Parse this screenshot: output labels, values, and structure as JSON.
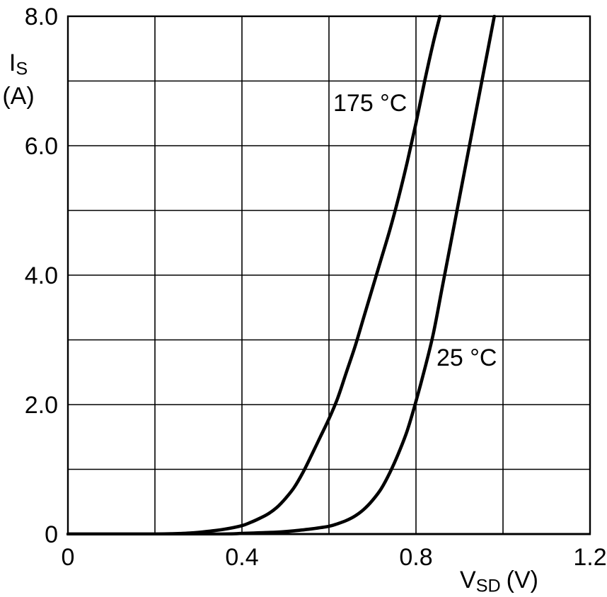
{
  "chart_data": {
    "type": "line",
    "title": "",
    "xlabel": {
      "symbol": "V",
      "subscript": "SD",
      "unit": "(V)"
    },
    "ylabel": {
      "symbol": "I",
      "subscript": "S",
      "unit": "(A)"
    },
    "xlim": [
      0,
      1.2
    ],
    "ylim": [
      0,
      8
    ],
    "xticks": [
      {
        "value": 0,
        "label": "0"
      },
      {
        "value": 0.4,
        "label": "0.4"
      },
      {
        "value": 0.8,
        "label": "0.8"
      },
      {
        "value": 1.2,
        "label": "1.2"
      }
    ],
    "yticks": [
      {
        "value": 0,
        "label": "0"
      },
      {
        "value": 2,
        "label": "2.0"
      },
      {
        "value": 4,
        "label": "4.0"
      },
      {
        "value": 6,
        "label": "6.0"
      },
      {
        "value": 8,
        "label": "8.0"
      }
    ],
    "grid": {
      "visible": true,
      "x_step": 0.2,
      "y_step": 1
    },
    "legend_position": "inline-annotations",
    "background_color": "#ffffff",
    "axis_color": "#000000",
    "curve_color": "#000000",
    "series": [
      {
        "name": "175 °C",
        "points": [
          [
            0.0,
            0
          ],
          [
            0.1,
            0
          ],
          [
            0.2,
            0
          ],
          [
            0.24,
            0.005
          ],
          [
            0.28,
            0.015
          ],
          [
            0.32,
            0.04
          ],
          [
            0.36,
            0.075
          ],
          [
            0.4,
            0.13
          ],
          [
            0.42,
            0.18
          ],
          [
            0.44,
            0.24
          ],
          [
            0.46,
            0.31
          ],
          [
            0.48,
            0.41
          ],
          [
            0.5,
            0.55
          ],
          [
            0.52,
            0.72
          ],
          [
            0.54,
            0.95
          ],
          [
            0.56,
            1.22
          ],
          [
            0.58,
            1.5
          ],
          [
            0.6,
            1.78
          ],
          [
            0.62,
            2.1
          ],
          [
            0.64,
            2.5
          ],
          [
            0.66,
            2.9
          ],
          [
            0.68,
            3.35
          ],
          [
            0.7,
            3.8
          ],
          [
            0.72,
            4.25
          ],
          [
            0.74,
            4.7
          ],
          [
            0.76,
            5.2
          ],
          [
            0.78,
            5.75
          ],
          [
            0.8,
            6.35
          ],
          [
            0.82,
            7.0
          ],
          [
            0.84,
            7.6
          ],
          [
            0.855,
            8.0
          ]
        ]
      },
      {
        "name": "25 °C",
        "points": [
          [
            0.0,
            0
          ],
          [
            0.2,
            0
          ],
          [
            0.35,
            0
          ],
          [
            0.4,
            0.01
          ],
          [
            0.44,
            0.02
          ],
          [
            0.48,
            0.03
          ],
          [
            0.52,
            0.05
          ],
          [
            0.56,
            0.08
          ],
          [
            0.6,
            0.12
          ],
          [
            0.62,
            0.16
          ],
          [
            0.64,
            0.21
          ],
          [
            0.66,
            0.28
          ],
          [
            0.68,
            0.38
          ],
          [
            0.7,
            0.52
          ],
          [
            0.72,
            0.7
          ],
          [
            0.74,
            0.95
          ],
          [
            0.76,
            1.25
          ],
          [
            0.78,
            1.6
          ],
          [
            0.8,
            2.05
          ],
          [
            0.82,
            2.55
          ],
          [
            0.84,
            3.1
          ],
          [
            0.86,
            3.8
          ],
          [
            0.88,
            4.5
          ],
          [
            0.9,
            5.2
          ],
          [
            0.92,
            5.9
          ],
          [
            0.94,
            6.6
          ],
          [
            0.96,
            7.3
          ],
          [
            0.98,
            8.0
          ]
        ]
      }
    ]
  }
}
